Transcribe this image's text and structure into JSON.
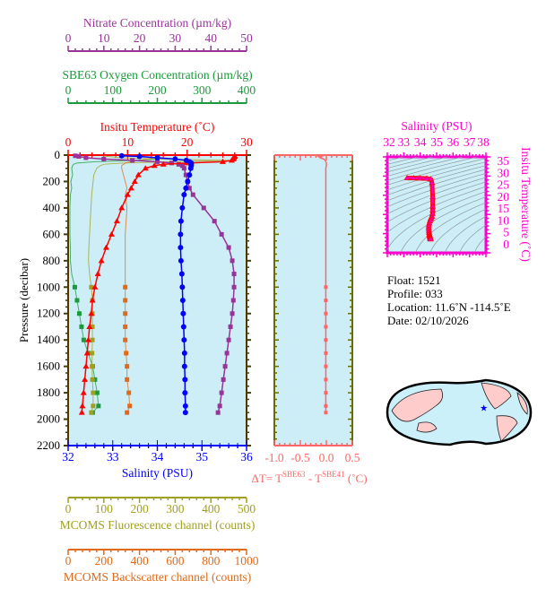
{
  "chart_data": [
    {
      "type": "line",
      "ylabel": "Pressure (decibar)",
      "ylim": [
        0,
        2200
      ],
      "yticks": [
        0,
        200,
        400,
        600,
        800,
        1000,
        1200,
        1400,
        1600,
        1800,
        2000,
        2200
      ],
      "y_inverted": true,
      "pressure": [
        5,
        10,
        20,
        30,
        40,
        50,
        60,
        70,
        80,
        100,
        150,
        200,
        250,
        300,
        400,
        500,
        600,
        700,
        800,
        900,
        1000,
        1100,
        1200,
        1300,
        1400,
        1500,
        1600,
        1700,
        1800,
        1900,
        1950
      ],
      "axes": [
        {
          "key": "nitrate",
          "label": "Nitrate Concentration (µm/kg)",
          "range": [
            0,
            50
          ],
          "ticks": [
            0,
            10,
            20,
            30,
            40,
            50
          ],
          "position": "top",
          "color": "#993399"
        },
        {
          "key": "oxygen",
          "label": "SBE63 Oxygen Concentration (µm/kg)",
          "range": [
            0,
            400
          ],
          "ticks": [
            0,
            100,
            200,
            300,
            400
          ],
          "position": "top",
          "color": "#1a9a3a"
        },
        {
          "key": "temperature",
          "label": "Insitu Temperature (˚C)",
          "range": [
            0,
            30
          ],
          "ticks": [
            0,
            10,
            20,
            30
          ],
          "position": "top",
          "color": "#ff0000"
        },
        {
          "key": "salinity",
          "label": "Salinity (PSU)",
          "range": [
            32,
            36
          ],
          "ticks": [
            32,
            33,
            34,
            35,
            36
          ],
          "position": "bottom",
          "color": "#0000ff"
        },
        {
          "key": "fluorescence",
          "label": "MCOMS Fluorescence channel (counts)",
          "range": [
            0,
            500
          ],
          "ticks": [
            0,
            100,
            200,
            300,
            400,
            500
          ],
          "position": "bottom",
          "color": "#a0a020"
        },
        {
          "key": "backscatter",
          "label": "MCOMS Backscatter channel (counts)",
          "range": [
            0,
            1000
          ],
          "ticks": [
            0,
            200,
            400,
            600,
            800,
            1000
          ],
          "position": "bottom",
          "color": "#e06a1a"
        }
      ],
      "series": {
        "temperature": [
          28,
          28,
          27.9,
          27.8,
          27.5,
          26,
          20,
          16,
          14.5,
          13,
          11.8,
          11.2,
          10.6,
          10,
          9,
          8.2,
          7.3,
          6.4,
          5.6,
          5,
          4.5,
          4.1,
          3.9,
          3.6,
          3.4,
          3.2,
          3,
          2.8,
          2.6,
          2.4,
          2.3
        ],
        "salinity": [
          33.2,
          33.6,
          34.0,
          34.4,
          34.65,
          34.72,
          34.76,
          34.76,
          34.76,
          34.75,
          34.72,
          34.68,
          34.64,
          34.6,
          34.56,
          34.53,
          34.52,
          34.52,
          34.53,
          34.55,
          34.56,
          34.57,
          34.58,
          34.59,
          34.6,
          34.61,
          34.61,
          34.62,
          34.62,
          34.63,
          34.63
        ],
        "nitrate": [
          2,
          3,
          5,
          10,
          18,
          25,
          29,
          31,
          32,
          32.5,
          33,
          33.5,
          34,
          35,
          38,
          41,
          43,
          45,
          46,
          46.5,
          46.5,
          46.3,
          46,
          45.5,
          45,
          44.5,
          44,
          43.5,
          43,
          42.5,
          42
        ],
        "oxygen": [
          200,
          205,
          205,
          200,
          150,
          60,
          20,
          12,
          10,
          8,
          10,
          6,
          8,
          5,
          4,
          4,
          4,
          5,
          5,
          8,
          15,
          20,
          25,
          30,
          35,
          45,
          55,
          60,
          65,
          68,
          55
        ],
        "fluorescence": [
          100,
          110,
          150,
          250,
          450,
          300,
          150,
          100,
          90,
          80,
          72,
          70,
          68,
          66,
          64,
          62,
          60,
          58,
          57,
          60,
          65,
          68,
          68,
          68,
          68,
          67,
          67,
          68,
          70,
          70,
          65
        ],
        "backscatter": [
          500,
          500,
          480,
          450,
          400,
          350,
          320,
          310,
          300,
          300,
          310,
          320,
          330,
          320,
          330,
          325,
          320,
          320,
          320,
          320,
          320,
          320,
          320,
          320,
          320,
          325,
          330,
          330,
          340,
          345,
          330
        ]
      }
    },
    {
      "type": "line",
      "xlabel": "ΔT= T^SBE63 - T^SBE41 (˚C)",
      "xlabel_parts": {
        "prefix": "ΔT= T",
        "sup1": "SBE63",
        "mid": " - T",
        "sup2": "SBE41",
        "suffix": " (˚C)"
      },
      "xlim": [
        -1.0,
        0.5
      ],
      "xticks": [
        "-1.0",
        "-0.5",
        "0.0",
        "0.5"
      ],
      "ylim": [
        0,
        2200
      ],
      "color": "#ff6666",
      "pressure": [
        5,
        10,
        20,
        30,
        40,
        50,
        60,
        80,
        100,
        200,
        300,
        400,
        500,
        600,
        700,
        800,
        900,
        1000,
        1100,
        1200,
        1300,
        1400,
        1500,
        1600,
        1700,
        1800,
        1900,
        1950
      ],
      "delta_t": [
        -0.05,
        -0.15,
        -0.12,
        -0.05,
        -0.02,
        -0.01,
        0,
        0,
        -0.01,
        -0.01,
        -0.01,
        -0.01,
        -0.01,
        -0.01,
        -0.01,
        -0.01,
        -0.01,
        -0.01,
        -0.01,
        -0.01,
        -0.01,
        -0.01,
        -0.01,
        -0.01,
        -0.01,
        -0.01,
        -0.01,
        -0.01
      ]
    },
    {
      "type": "scatter",
      "xlabel": "Salinity (PSU)",
      "ylabel": "Insitu Temperature (˚C)",
      "xlim": [
        32,
        38
      ],
      "xticks": [
        32,
        33,
        34,
        35,
        36,
        37,
        38
      ],
      "ylim": [
        0,
        35
      ],
      "yticks": [
        0,
        5,
        10,
        15,
        20,
        25,
        30,
        35
      ],
      "color": "#ff00cc",
      "note_source": "temperature/salinity series of profile"
    }
  ],
  "info": {
    "float": "Float:  1521",
    "profile": "Profile:  033",
    "location": "Location:  11.6˚N  -114.5˚E",
    "date": "Date:  02/10/2026"
  },
  "map": {
    "lat": 11.6,
    "lon": -114.5,
    "marker": "star",
    "marker_color": "#0000ff",
    "land_color": "#ffcccc",
    "ocean_color": "#ccf0fa"
  },
  "colors": {
    "plot_bg": "#cdeef7",
    "frame": "#4a3a00"
  }
}
